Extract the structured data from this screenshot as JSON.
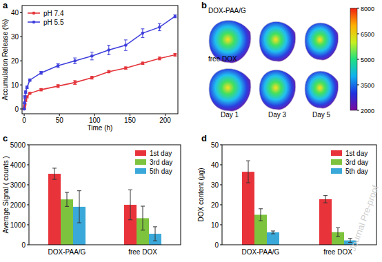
{
  "chart_data": [
    {
      "panel_label": "a",
      "type": "line",
      "x_label": "Time (h)",
      "y_label": "Accumulation Release (%)",
      "x": [
        0,
        0.5,
        1,
        2,
        4,
        8,
        24,
        48,
        72,
        96,
        120,
        144,
        168,
        192,
        214
      ],
      "series": [
        {
          "name": "pH 7.4",
          "color": "#e4353b",
          "marker": "circle",
          "values": [
            0,
            1,
            2,
            3.5,
            5,
            6.5,
            8,
            9.5,
            11,
            13,
            15.5,
            17,
            19,
            21,
            22.5
          ],
          "errors": [
            0.2,
            0.3,
            0.3,
            0.4,
            0.4,
            0.4,
            0.5,
            0.6,
            0.8,
            0.6,
            0.5,
            0.5,
            0.5,
            0.6,
            0.6
          ]
        },
        {
          "name": "pH 5.5",
          "color": "#3f3fdc",
          "marker": "circle",
          "values": [
            0,
            2.5,
            5,
            7,
            9,
            12,
            15,
            18,
            20,
            22,
            24.5,
            26.5,
            31.5,
            34,
            38.5
          ],
          "errors": [
            0.2,
            0.4,
            0.5,
            0.5,
            0.5,
            0.5,
            0.6,
            0.8,
            1.2,
            1.6,
            2,
            2.2,
            1.8,
            1.5,
            0.6
          ]
        }
      ],
      "xlim": [
        -3,
        218
      ],
      "xticks": [
        0,
        50,
        100,
        150,
        200
      ],
      "ylim": [
        -2,
        43
      ],
      "yticks": [
        0,
        10,
        20,
        30,
        40
      ],
      "legend": "upper left",
      "grid": false
    },
    {
      "panel_label": "b",
      "type": "image",
      "rows": [
        "DOX-PAA/G",
        "free DOX"
      ],
      "columns": [
        "Day 1",
        "Day 3",
        "Day 5"
      ],
      "colorbar": {
        "range": [
          2000,
          8000
        ],
        "ticks": [
          2000,
          3500,
          5000,
          6500,
          8000
        ]
      }
    },
    {
      "panel_label": "c",
      "type": "bar",
      "y_label": "Average Signal ( counts )",
      "categories": [
        "DOX-PAA/G",
        "free DOX"
      ],
      "series": [
        {
          "name": "1st day",
          "color": "#e8333a",
          "values": [
            3550,
            2000
          ],
          "errors": [
            280,
            750
          ]
        },
        {
          "name": "3rd day",
          "color": "#7ec33d",
          "values": [
            2270,
            1330
          ],
          "errors": [
            350,
            600
          ]
        },
        {
          "name": "5th day",
          "color": "#3aa8d8",
          "values": [
            1900,
            550
          ],
          "errors": [
            800,
            350
          ]
        }
      ],
      "ylim": [
        0,
        5000
      ],
      "yticks": [
        0,
        1000,
        2000,
        3000,
        4000,
        5000
      ],
      "legend": "upper right",
      "grid": false
    },
    {
      "panel_label": "d",
      "type": "bar",
      "y_label": "DOX content (μg)",
      "categories": [
        "DOX-PAA/G",
        "free DOX"
      ],
      "series": [
        {
          "name": "1st day",
          "color": "#e8333a",
          "values": [
            36.5,
            22.8
          ],
          "errors": [
            5.5,
            1.8
          ]
        },
        {
          "name": "3rd day",
          "color": "#7ec33d",
          "values": [
            15,
            6.3
          ],
          "errors": [
            3,
            2.2
          ]
        },
        {
          "name": "5th day",
          "color": "#3aa8d8",
          "values": [
            6.2,
            2.2
          ],
          "errors": [
            0.7,
            1
          ]
        }
      ],
      "ylim": [
        0,
        50
      ],
      "yticks": [
        0,
        10,
        20,
        30,
        40,
        50
      ],
      "legend": "upper right",
      "grid": false
    }
  ],
  "watermark": "Journal Pre-proof"
}
